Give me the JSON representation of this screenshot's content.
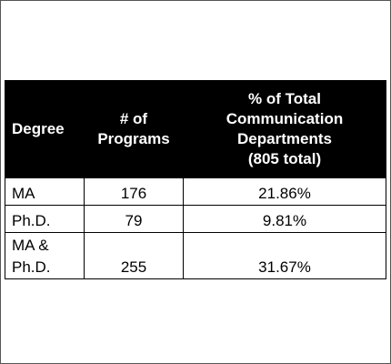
{
  "table": {
    "headers": {
      "degree": "Degree",
      "programs": "# of\nPrograms",
      "percent": "% of Total\nCommunication\nDepartments\n(805 total)"
    },
    "rows": [
      {
        "degree": "MA",
        "programs": "176",
        "percent": "21.86%"
      },
      {
        "degree": "Ph.D.",
        "programs": "79",
        "percent": "9.81%"
      },
      {
        "degree": "MA &\nPh.D.",
        "programs": "255",
        "percent": "31.67%"
      }
    ]
  },
  "colors": {
    "header_bg": "#000000",
    "header_text": "#ffffff",
    "border": "#000000"
  }
}
